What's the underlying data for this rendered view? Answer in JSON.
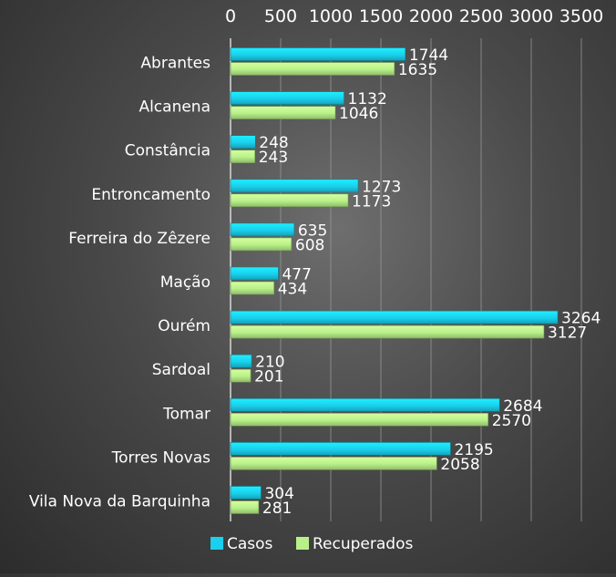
{
  "chart_data": {
    "type": "bar",
    "orientation": "horizontal",
    "title": "",
    "xlabel": "",
    "ylabel": "",
    "xlim": [
      0,
      3500
    ],
    "x_ticks": [
      0,
      500,
      1000,
      1500,
      2000,
      2500,
      3000,
      3500
    ],
    "x_axis_position": "top",
    "grid": true,
    "legend_position": "bottom",
    "categories": [
      "Abrantes",
      "Alcanena",
      "Constância",
      "Entroncamento",
      "Ferreira do Zêzere",
      "Mação",
      "Ourém",
      "Sardoal",
      "Tomar",
      "Torres Novas",
      "Vila Nova da Barquinha"
    ],
    "series": [
      {
        "name": "Casos",
        "color": "#1ad0ec",
        "values": [
          1744,
          1132,
          248,
          1273,
          635,
          477,
          3264,
          210,
          2684,
          2195,
          304
        ]
      },
      {
        "name": "Recuperados",
        "color": "#b8f089",
        "values": [
          1635,
          1046,
          243,
          1173,
          608,
          434,
          3127,
          201,
          2570,
          2058,
          281
        ]
      }
    ]
  }
}
